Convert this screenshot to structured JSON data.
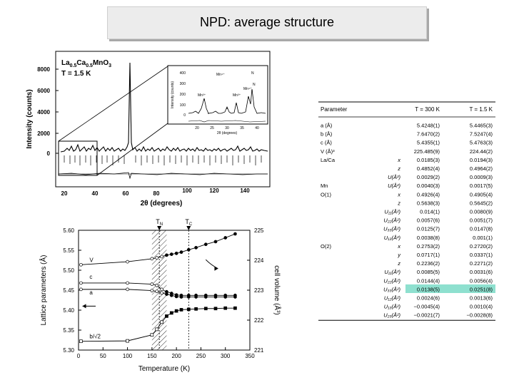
{
  "slide": {
    "title": "NPD: average structure"
  },
  "npd": {
    "compound": "La0.5Ca0.5MnO3",
    "compound_parts": [
      "La",
      "0.5",
      "Ca",
      "0.5",
      "MnO",
      "3"
    ],
    "temperature": "T = 1.5 K",
    "ylabel": "Intensity (counts)",
    "xlabel": "2θ (degrees)",
    "yticks": [
      "8000",
      "6000",
      "4000",
      "2000",
      "0"
    ],
    "xticks": [
      "20",
      "40",
      "60",
      "80",
      "100",
      "120",
      "140"
    ],
    "inset": {
      "ylabel": "Intensity (counts)",
      "xlabel": "2θ (degrees)",
      "yticks": [
        "400",
        "300",
        "200",
        "100",
        "0"
      ],
      "xticks": [
        "20",
        "25",
        "30",
        "35",
        "40"
      ],
      "labels": [
        "Mn³⁺",
        "Mn⁴⁺",
        "Mn³⁺",
        "Mn⁴⁺",
        "N",
        "N"
      ]
    }
  },
  "chart_data": [
    {
      "type": "line",
      "title": "",
      "xlabel": "Temperature (K)",
      "ylabel": "Lattice parameters (Å)",
      "y2label": "cell volume (Å³)",
      "xlim": [
        0,
        350
      ],
      "ylim": [
        5.3,
        5.6
      ],
      "y2lim": [
        221,
        225
      ],
      "xticks": [
        "0",
        "50",
        "100",
        "150",
        "200",
        "250",
        "300",
        "350"
      ],
      "yticks": [
        "5.60",
        "5.55",
        "5.50",
        "5.45",
        "5.40",
        "5.35",
        "5.30"
      ],
      "y2ticks": [
        "225",
        "224",
        "223",
        "222",
        "221"
      ],
      "markers": [
        "T_N",
        "T_C"
      ],
      "marker_values": [
        165,
        225
      ],
      "series_labels": [
        "V",
        "c",
        "a",
        "b/√2"
      ],
      "series": [
        {
          "name": "V",
          "axis": "right",
          "x": [
            5,
            100,
            150,
            160,
            170,
            180,
            190,
            200,
            210,
            225,
            240,
            260,
            280,
            300,
            320
          ],
          "y": [
            223.85,
            223.95,
            224.05,
            224.08,
            224.12,
            224.17,
            224.2,
            224.23,
            224.27,
            224.35,
            224.42,
            224.53,
            224.62,
            224.75,
            224.88
          ]
        },
        {
          "name": "c",
          "x": [
            5,
            100,
            150,
            160,
            170,
            180,
            190,
            200,
            210,
            225,
            240,
            260,
            280,
            300,
            320
          ],
          "y": [
            5.468,
            5.468,
            5.465,
            5.462,
            5.452,
            5.446,
            5.442,
            5.438,
            5.437,
            5.437,
            5.437,
            5.437,
            5.437,
            5.437,
            5.437
          ]
        },
        {
          "name": "a",
          "x": [
            5,
            100,
            150,
            160,
            170,
            180,
            190,
            200,
            210,
            225,
            240,
            260,
            280,
            300,
            320
          ],
          "y": [
            5.452,
            5.452,
            5.449,
            5.447,
            5.443,
            5.44,
            5.437,
            5.434,
            5.433,
            5.433,
            5.433,
            5.433,
            5.433,
            5.433,
            5.433
          ]
        },
        {
          "name": "b/√2",
          "x": [
            5,
            100,
            150,
            160,
            170,
            180,
            190,
            200,
            210,
            225,
            240,
            260,
            280,
            300,
            320
          ],
          "y": [
            5.322,
            5.323,
            5.338,
            5.352,
            5.37,
            5.385,
            5.393,
            5.398,
            5.401,
            5.402,
            5.403,
            5.404,
            5.404,
            5.405,
            5.405
          ]
        }
      ]
    }
  ],
  "table": {
    "headers": [
      "Parameter",
      "T = 300 K",
      "T = 1.5 K"
    ],
    "highlight_row": 20,
    "highlight_color": "#8ee0cf",
    "rows": [
      [
        "a (Å)",
        "",
        "5.4248(1)",
        "5.4465(3)"
      ],
      [
        "b (Å)",
        "",
        "7.6470(2)",
        "7.5247(4)"
      ],
      [
        "c (Å)",
        "",
        "5.4355(1)",
        "5.4763(3)"
      ],
      [
        "V (Å)³",
        "",
        "225.485(9)",
        "224.44(2)"
      ],
      [
        "La/Ca",
        "x",
        "0.0185(3)",
        "0.0194(3)"
      ],
      [
        "",
        "z",
        "0.4852(4)",
        "0.4964(2)"
      ],
      [
        "",
        "U(Å²)",
        "0.0029(2)",
        "0.0009(3)"
      ],
      [
        "Mn",
        "U(Å²)",
        "0.0040(3)",
        "0.0017(5)"
      ],
      [
        "O(1)",
        "x",
        "0.4926(4)",
        "0.4905(4)"
      ],
      [
        "",
        "z",
        "0.5638(3)",
        "0.5645(2)"
      ],
      [
        "",
        "U₁₁(Å²)",
        "0.014(1)",
        "0.0080(9)"
      ],
      [
        "",
        "U₂₂(Å²)",
        "0.0057(6)",
        "0.0051(7)"
      ],
      [
        "",
        "U₃₃(Å²)",
        "0.0125(7)",
        "0.0147(8)"
      ],
      [
        "",
        "U₁₃(Å²)",
        "0.0038(8)",
        "0.001(1)"
      ],
      [
        "O(2)",
        "x",
        "0.2753(2)",
        "0.2720(2)"
      ],
      [
        "",
        "y",
        "0.0717(1)",
        "0.0337(1)"
      ],
      [
        "",
        "z",
        "0.2236(2)",
        "0.2271(2)"
      ],
      [
        "",
        "U₁₁(Å²)",
        "0.0085(5)",
        "0.0031(6)"
      ],
      [
        "",
        "U₂₂(Å²)",
        "0.0144(4)",
        "0.0056(4)"
      ],
      [
        "",
        "U₃₃(Å²)",
        "0.0138(5)",
        "0.0251(8)"
      ],
      [
        "",
        "U₁₂(Å²)",
        "0.0024(6)",
        "0.0013(6)"
      ],
      [
        "",
        "U₁₃(Å²)",
        "−0.0045(4)",
        "0.0010(4)"
      ],
      [
        "",
        "U₂₃(Å²)",
        "−0.0021(7)",
        "−0.0028(8)"
      ]
    ]
  }
}
